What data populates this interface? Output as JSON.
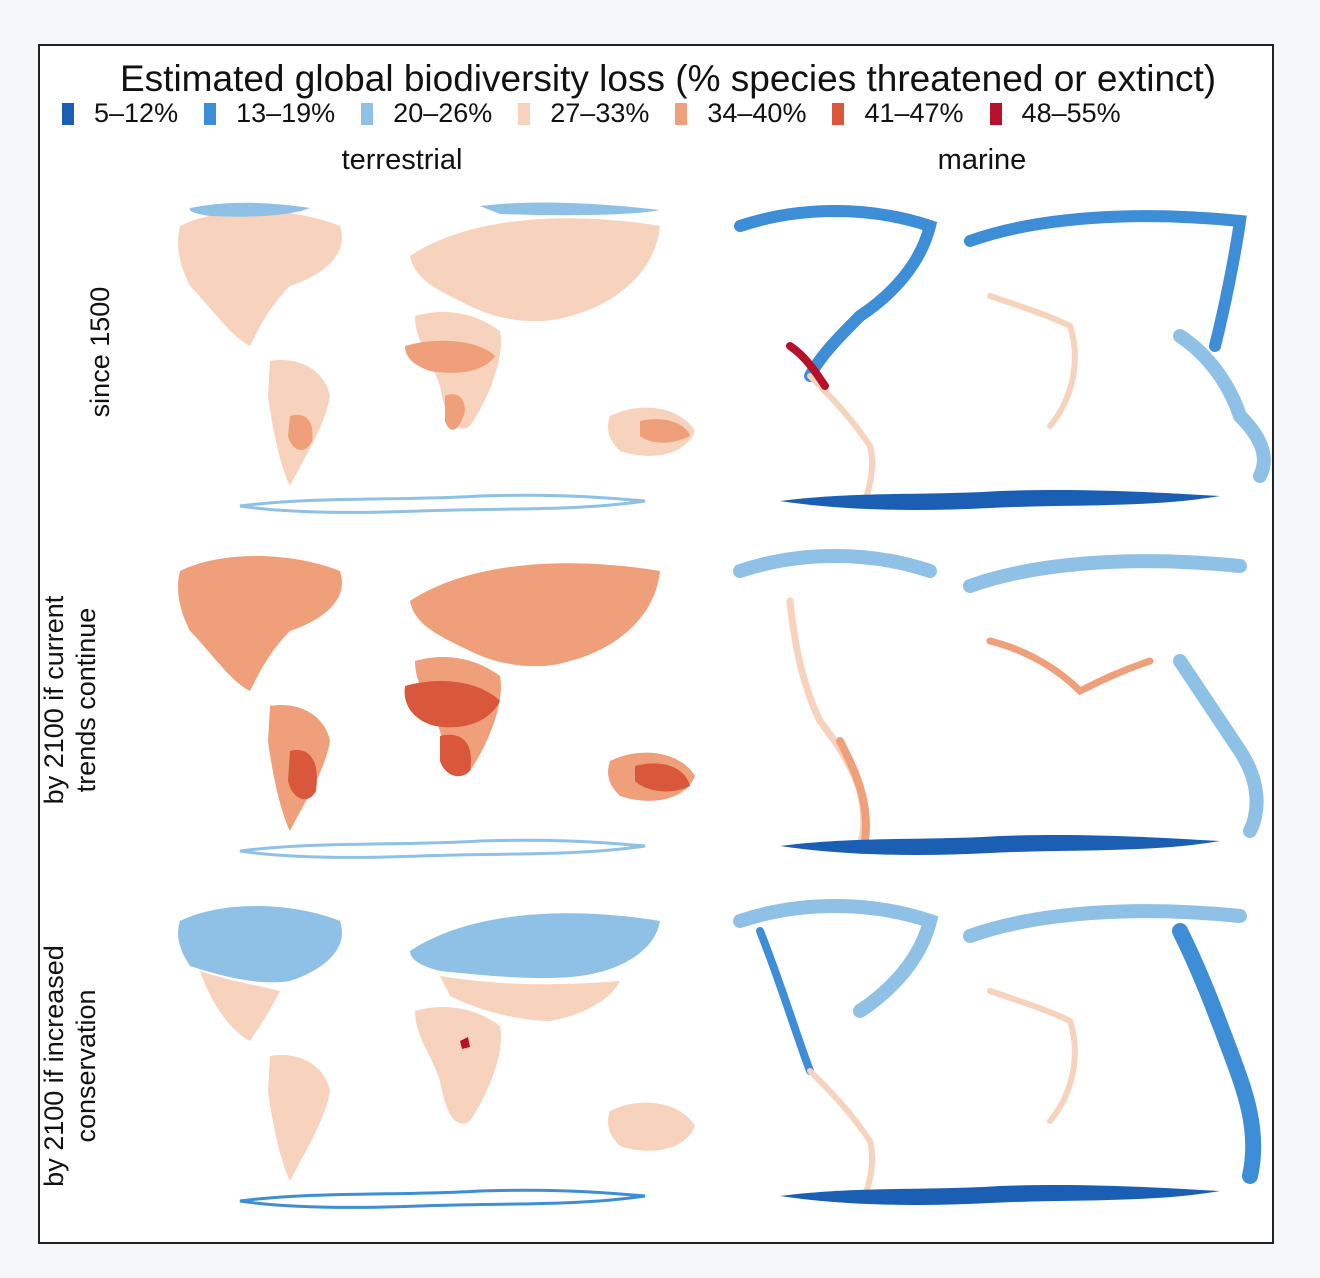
{
  "title": "Estimated global biodiversity loss (% species threatened or extinct)",
  "legend": [
    {
      "label": "5–12%",
      "color": "#1a5fb4"
    },
    {
      "label": "13–19%",
      "color": "#3d8ed6"
    },
    {
      "label": "20–26%",
      "color": "#8fc0e6"
    },
    {
      "label": "27–33%",
      "color": "#f7d3bd"
    },
    {
      "label": "34–40%",
      "color": "#ef9f79"
    },
    {
      "label": "41–47%",
      "color": "#d9573a"
    },
    {
      "label": "48–55%",
      "color": "#b5112b"
    }
  ],
  "columns": {
    "terrestrial": "terrestrial",
    "marine": "marine"
  },
  "rows": {
    "since": "since 1500",
    "trends_line1": "by 2100 if current",
    "trends_line2": "trends continue",
    "conservation_line1": "by 2100 if increased",
    "conservation_line2": "conservation"
  },
  "maps": [
    {
      "row": "since 1500",
      "column": "terrestrial",
      "dominant_class": "27–33%",
      "hotspots": [
        "Sahel",
        "Madagascar",
        "Brazil",
        "Australia"
      ],
      "hotspot_class": "34–40%",
      "antarctica_class": "20–26%"
    },
    {
      "row": "since 1500",
      "column": "marine",
      "dominant_class": "13–19%",
      "hotspots": [
        "Central America Pacific coast"
      ],
      "hotspot_class": "48–55%",
      "antarctica_class": "5–12%"
    },
    {
      "row": "by 2100 if current trends continue",
      "column": "terrestrial",
      "dominant_class": "34–40%",
      "hotspots": [
        "Sahel",
        "Brazil",
        "Australia",
        "Central Africa"
      ],
      "hotspot_class": "41–47%",
      "antarctica_class": "20–26%"
    },
    {
      "row": "by 2100 if current trends continue",
      "column": "marine",
      "dominant_class": "27–33%",
      "hotspots": [
        "South America Atlantic coast",
        "India coast"
      ],
      "hotspot_class": "34–40%",
      "antarctica_class": "5–12%"
    },
    {
      "row": "by 2100 if increased conservation",
      "column": "terrestrial",
      "dominant_class": "20–26%",
      "hotspots": [
        "Tropics"
      ],
      "hotspot_class": "27–33%",
      "antarctica_class": "20–26%"
    },
    {
      "row": "by 2100 if increased conservation",
      "column": "marine",
      "dominant_class": "13–19%",
      "hotspots": [
        "West Pacific"
      ],
      "hotspot_class": "5–12%",
      "antarctica_class": "5–12%"
    }
  ]
}
